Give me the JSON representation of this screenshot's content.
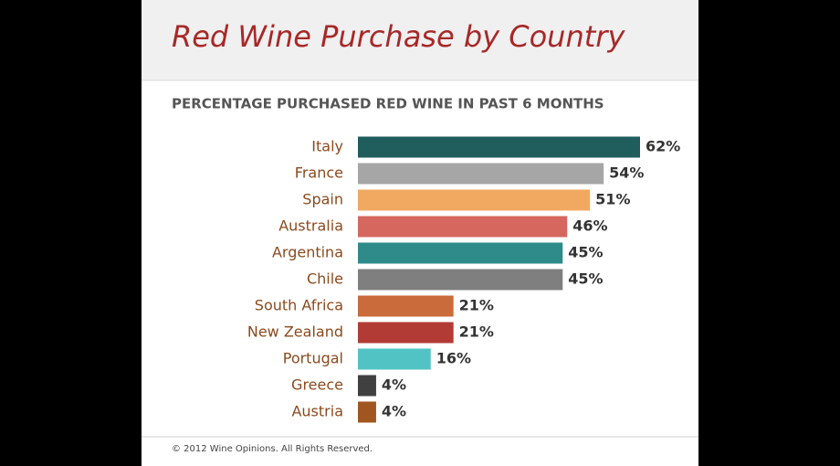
{
  "chart_data": {
    "type": "bar",
    "orientation": "horizontal",
    "title": "Red Wine Purchase by Country",
    "subtitle": "PERCENTAGE PURCHASED RED WINE IN PAST 6 MONTHS",
    "categories": [
      "Italy",
      "France",
      "Spain",
      "Australia",
      "Argentina",
      "Chile",
      "South Africa",
      "New Zealand",
      "Portugal",
      "Greece",
      "Austria"
    ],
    "values": [
      62,
      54,
      51,
      46,
      45,
      45,
      21,
      21,
      16,
      4,
      4
    ],
    "value_labels": [
      "62%",
      "54%",
      "51%",
      "46%",
      "45%",
      "45%",
      "21%",
      "21%",
      "16%",
      "4%",
      "4%"
    ],
    "colors": [
      "#1f5e5c",
      "#a6a6a6",
      "#f1a962",
      "#d6675e",
      "#2f8b8a",
      "#7f7f7f",
      "#c96b3a",
      "#b23b35",
      "#52c3c4",
      "#404040",
      "#a1561f"
    ],
    "footer": "© 2012 Wine Opinions.  All Rights Reserved."
  }
}
